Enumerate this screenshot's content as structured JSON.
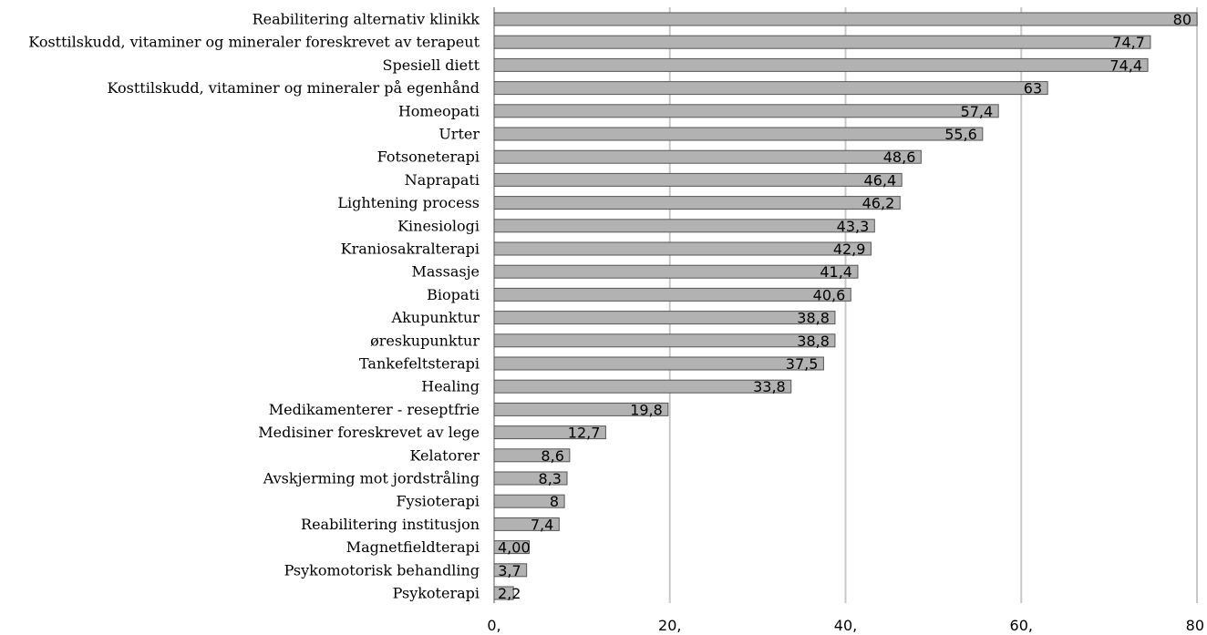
{
  "chart_data": {
    "type": "bar",
    "orientation": "horizontal",
    "title": "",
    "xlabel": "",
    "ylabel": "",
    "xlim": [
      0,
      80
    ],
    "x_ticks": [
      {
        "value": 0,
        "label": "0,"
      },
      {
        "value": 20,
        "label": "20,"
      },
      {
        "value": 40,
        "label": "40,"
      },
      {
        "value": 60,
        "label": "60,"
      },
      {
        "value": 80,
        "label": "80"
      }
    ],
    "grid": true,
    "legend": "none",
    "colors": {
      "bar_fill": "#b2b2b2",
      "bar_stroke": "#555555",
      "grid": "#c8c8c8",
      "axis": "#555555"
    },
    "bars": [
      {
        "category": "Reabilitering alternativ klinikk",
        "value": 80,
        "label": "80"
      },
      {
        "category": "Kosttilskudd, vitaminer og mineraler foreskrevet av terapeut",
        "value": 74.7,
        "label": "74,7"
      },
      {
        "category": "Spesiell diett",
        "value": 74.4,
        "label": "74,4"
      },
      {
        "category": "Kosttilskudd, vitaminer og mineraler på egenhånd",
        "value": 63,
        "label": "63"
      },
      {
        "category": "Homeopati",
        "value": 57.4,
        "label": "57,4"
      },
      {
        "category": "Urter",
        "value": 55.6,
        "label": "55,6"
      },
      {
        "category": "Fotsoneterapi",
        "value": 48.6,
        "label": "48,6"
      },
      {
        "category": "Naprapati",
        "value": 46.4,
        "label": "46,4"
      },
      {
        "category": "Lightening process",
        "value": 46.2,
        "label": "46,2"
      },
      {
        "category": "Kinesiologi",
        "value": 43.3,
        "label": "43,3"
      },
      {
        "category": "Kraniosakralterapi",
        "value": 42.9,
        "label": "42,9"
      },
      {
        "category": "Massasje",
        "value": 41.4,
        "label": "41,4"
      },
      {
        "category": "Biopati",
        "value": 40.6,
        "label": "40,6"
      },
      {
        "category": "Akupunktur",
        "value": 38.8,
        "label": "38,8"
      },
      {
        "category": "øreskupunktur",
        "value": 38.8,
        "label": "38,8"
      },
      {
        "category": "Tankefeltsterapi",
        "value": 37.5,
        "label": "37,5"
      },
      {
        "category": "Healing",
        "value": 33.8,
        "label": "33,8"
      },
      {
        "category": "Medikamenterer - reseptfrie",
        "value": 19.8,
        "label": "19,8"
      },
      {
        "category": "Medisiner foreskrevet av lege",
        "value": 12.7,
        "label": "12,7"
      },
      {
        "category": "Kelatorer",
        "value": 8.6,
        "label": "8,6"
      },
      {
        "category": "Avskjerming mot jordstråling",
        "value": 8.3,
        "label": "8,3"
      },
      {
        "category": "Fysioterapi",
        "value": 8,
        "label": "8"
      },
      {
        "category": "Reabilitering institusjon",
        "value": 7.4,
        "label": "7,4"
      },
      {
        "category": "Magnetfieldterapi",
        "value": 4.0,
        "label": "4,00"
      },
      {
        "category": "Psykomotorisk behandling",
        "value": 3.7,
        "label": "3,7"
      },
      {
        "category": "Psykoterapi",
        "value": 2.2,
        "label": "2,2"
      }
    ]
  }
}
